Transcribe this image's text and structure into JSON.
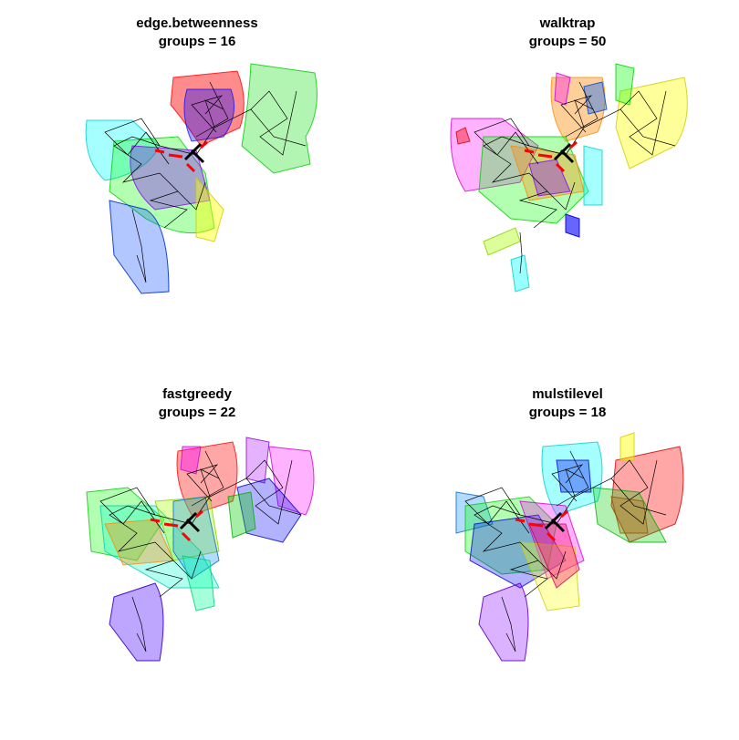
{
  "panels": [
    {
      "method": "edge.betweenness",
      "groups_label": "groups = 16",
      "groups": 16
    },
    {
      "method": "walktrap",
      "groups_label": "groups = 50",
      "groups": 50
    },
    {
      "method": "fastgreedy",
      "groups_label": "groups = 22",
      "groups": 22
    },
    {
      "method": "mulstilevel",
      "groups_label": "groups = 18",
      "groups": 18
    }
  ],
  "colors": {
    "edges": "#000000",
    "highlighted_edges": "#ff0000",
    "group_palette": [
      "#ff0000",
      "#00cc00",
      "#0000ff",
      "#ffff00",
      "#ff00ff",
      "#00ffff",
      "#ff8800",
      "#8800ff"
    ]
  }
}
